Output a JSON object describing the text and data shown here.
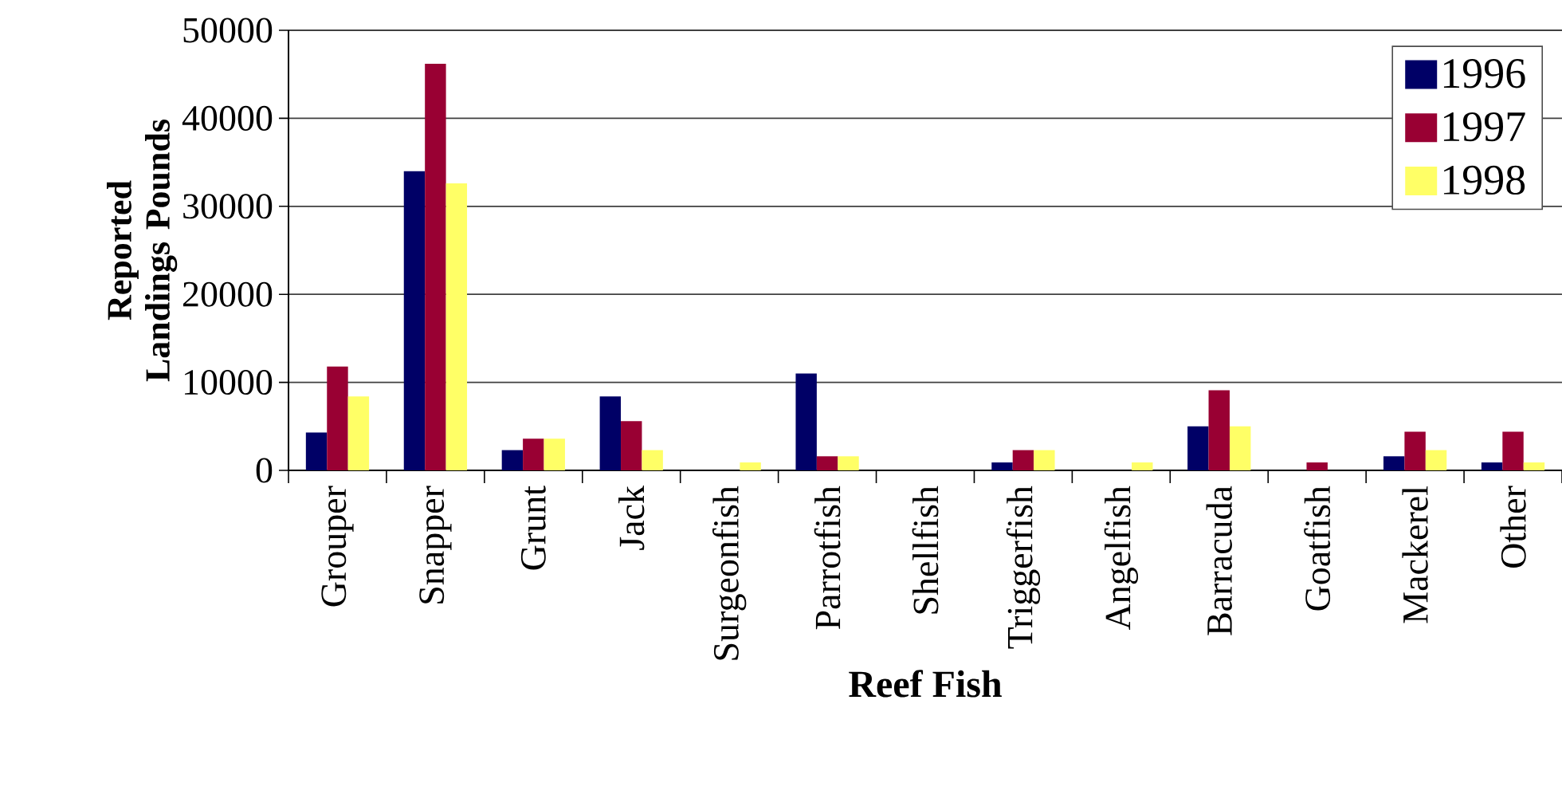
{
  "chart_data": {
    "type": "bar",
    "xlabel": "Reef Fish",
    "ylabel": "Reported Landings Pounds",
    "categories": [
      "Grouper",
      "Snapper",
      "Grunt",
      "Jack",
      "Surgeonfish",
      "Parrotfish",
      "Shellfish",
      "Triggerfish",
      "Angelfish",
      "Barracuda",
      "Goatfish",
      "Mackerel",
      "Other"
    ],
    "series": [
      {
        "name": "1996",
        "color": "#000066",
        "values": [
          4300,
          34000,
          2300,
          8400,
          0,
          11000,
          0,
          900,
          0,
          5000,
          0,
          1600,
          900
        ]
      },
      {
        "name": "1997",
        "color": "#990033",
        "values": [
          11800,
          46200,
          3600,
          5600,
          0,
          1600,
          0,
          2300,
          0,
          9100,
          900,
          4400,
          4400
        ]
      },
      {
        "name": "1998",
        "color": "#ffff66",
        "values": [
          8400,
          32600,
          3600,
          2300,
          900,
          1600,
          0,
          2300,
          900,
          5000,
          0,
          2300,
          900
        ]
      }
    ],
    "ylim": [
      0,
      50000
    ],
    "yticks": [
      0,
      10000,
      20000,
      30000,
      40000,
      50000
    ],
    "grid": "y",
    "legend": "top right"
  }
}
